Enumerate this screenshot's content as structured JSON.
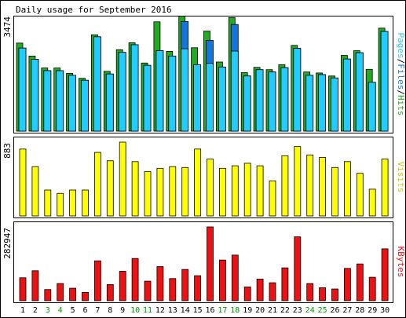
{
  "chart_data": {
    "type": "bar",
    "title": "Daily usage for September 2016",
    "categories": [
      "1",
      "2",
      "3",
      "4",
      "5",
      "6",
      "7",
      "8",
      "9",
      "10",
      "11",
      "12",
      "13",
      "14",
      "15",
      "16",
      "17",
      "18",
      "19",
      "20",
      "21",
      "22",
      "23",
      "24",
      "25",
      "26",
      "27",
      "28",
      "29",
      "30"
    ],
    "weekend_days": [
      "3",
      "4",
      "10",
      "11",
      "17",
      "18",
      "24",
      "25"
    ],
    "colors": {
      "hits": "#22aa22",
      "files": "#1177dd",
      "pages": "#22ccff",
      "visits": "#ffff00",
      "kbytes": "#ee1111",
      "weekend_label": "#009900",
      "weekday_label": "#000000",
      "background": "#ffffff",
      "border": "#000000"
    },
    "panels": [
      {
        "id": "traffic",
        "ymax_label": "3474",
        "ymax": 3474,
        "side_label": [
          "Pages",
          "/",
          "Files",
          "/",
          "Hits"
        ],
        "side_label_colors": [
          "#22ccff",
          "#000000",
          "#1177dd",
          "#000000",
          "#22aa22"
        ],
        "series": [
          {
            "name": "Hits",
            "values": [
              2650,
              2260,
              1900,
              1900,
              1740,
              1590,
              2900,
              1800,
              2450,
              2660,
              2050,
              3290,
              2400,
              3460,
              2510,
              3010,
              2080,
              3420,
              1760,
              1920,
              1850,
              2000,
              2580,
              1780,
              1750,
              1660,
              2280,
              2420,
              1860,
              3100
            ]
          },
          {
            "name": "Files",
            "values": [
              2500,
              2160,
              1820,
              1820,
              1680,
              1530,
              2840,
              1720,
              2370,
              2600,
              1980,
              2420,
              2260,
              3300,
              2000,
              2730,
              1930,
              3210,
              1660,
              1850,
              1780,
              1910,
              2490,
              1680,
              1700,
              1600,
              2170,
              2360,
              1470,
              3000
            ]
          },
          {
            "name": "Pages",
            "values": [
              2500,
              2160,
              1820,
              1820,
              1680,
              1530,
              2840,
              1720,
              2370,
              2600,
              1980,
              2420,
              2260,
              2480,
              2000,
              2040,
              1930,
              2410,
              1660,
              1850,
              1780,
              1910,
              2490,
              1680,
              1700,
              1600,
              2170,
              2360,
              1470,
              3000
            ]
          }
        ]
      },
      {
        "id": "visits",
        "ymax_label": "883",
        "ymax": 883,
        "side_label": [
          "Visits"
        ],
        "side_label_colors": [
          "#cccc00"
        ],
        "series": [
          {
            "name": "Visits",
            "values": [
              800,
              590,
              310,
              270,
              310,
              310,
              760,
              660,
              883,
              650,
              530,
              570,
              590,
              580,
              800,
              680,
              570,
              600,
              630,
              600,
              420,
              720,
              830,
              730,
              700,
              580,
              650,
              510,
              320,
              680
            ]
          }
        ]
      },
      {
        "id": "kbytes",
        "ymax_label": "282947",
        "ymax": 282947,
        "side_label": [
          "KBytes"
        ],
        "side_label_colors": [
          "#ee1111"
        ],
        "series": [
          {
            "name": "KBytes",
            "values": [
              88000,
              115000,
              43000,
              66000,
              48000,
              32000,
              153000,
              62000,
              113000,
              162000,
              75000,
              131000,
              85000,
              120000,
              96000,
              282947,
              156000,
              175000,
              53000,
              83000,
              69000,
              126000,
              245000,
              66000,
              50000,
              45000,
              124000,
              141000,
              90000,
              199000
            ]
          }
        ]
      }
    ]
  }
}
